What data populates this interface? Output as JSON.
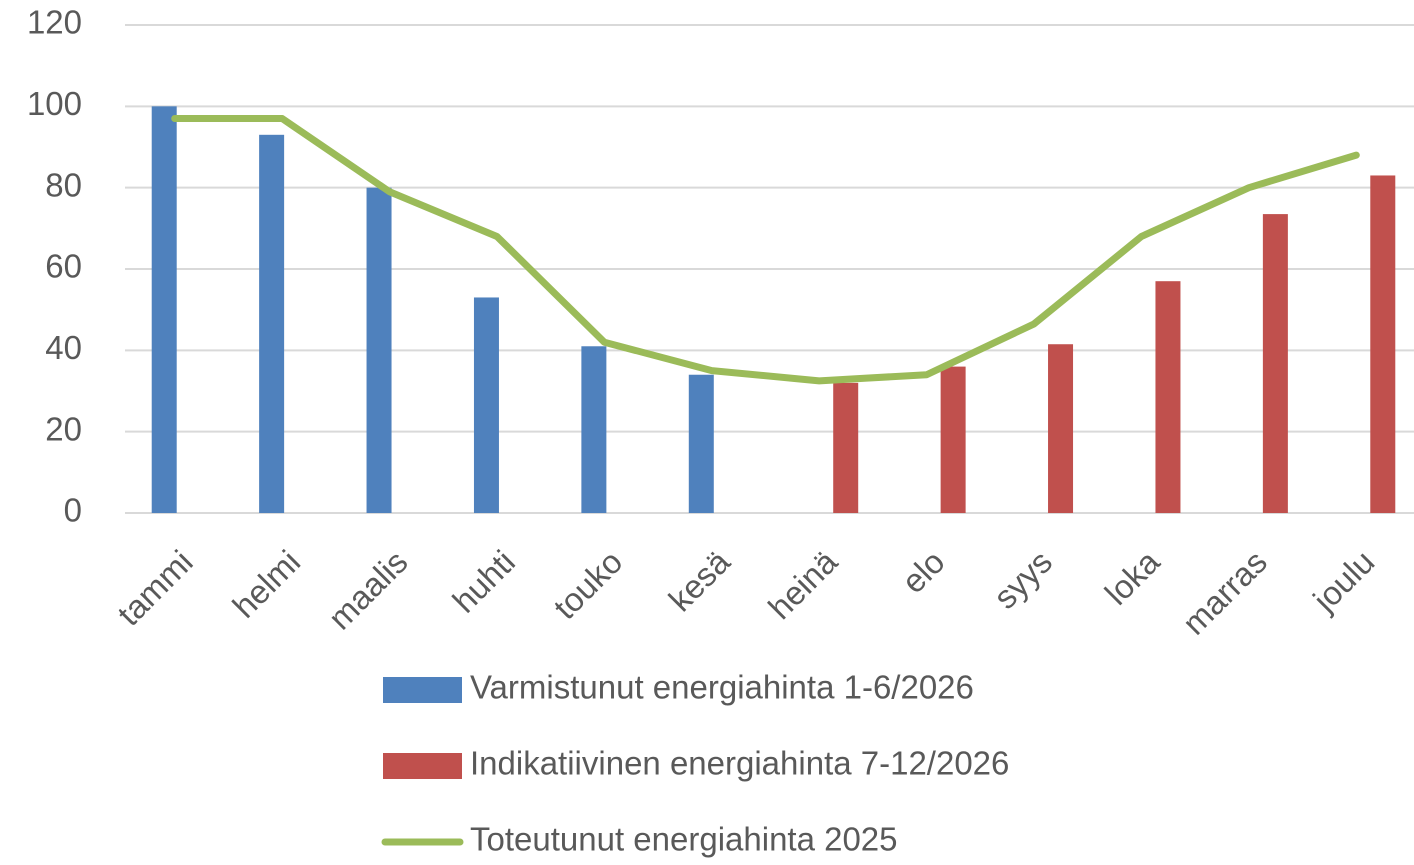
{
  "chart_data": {
    "type": "bar",
    "categories": [
      "tammi",
      "helmi",
      "maalis",
      "huhti",
      "touko",
      "kesä",
      "heinä",
      "elo",
      "syys",
      "loka",
      "marras",
      "joulu"
    ],
    "series": [
      {
        "name": "Varmistunut energiahinta 1-6/2026",
        "color": "#4f81bd",
        "values": [
          100,
          93,
          80,
          53,
          41,
          34,
          null,
          null,
          null,
          null,
          null,
          null
        ]
      },
      {
        "name": "Indikatiivinen energiahinta 7-12/2026",
        "color": "#c0504d",
        "values": [
          null,
          null,
          null,
          null,
          null,
          null,
          32,
          36,
          41.5,
          57,
          73.5,
          83
        ]
      },
      {
        "name": "Toteutunut energiahinta 2025",
        "color": "#9bbb59",
        "type": "line",
        "values": [
          97,
          97,
          79,
          68,
          42,
          35,
          32.5,
          34,
          46.5,
          68,
          80,
          88
        ]
      }
    ],
    "ylim": [
      0,
      120
    ],
    "yticks": [
      0,
      20,
      40,
      60,
      80,
      100,
      120
    ],
    "grid": true,
    "legend": "bottom"
  }
}
